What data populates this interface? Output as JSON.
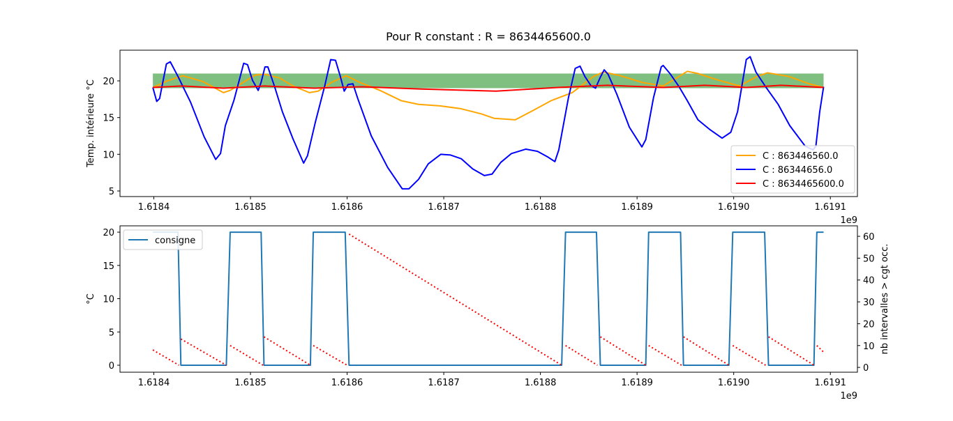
{
  "chart_data": [
    {
      "type": "line",
      "title": "Pour R constant : R = 8634465600.0",
      "ylabel": "Temp. intérieure °C",
      "x_offset_label": "1e9",
      "xlim": [
        1.618365,
        1.619128
      ],
      "xticks": [
        1.6184,
        1.6185,
        1.6186,
        1.6187,
        1.6188,
        1.6189,
        {
          "value": 1.619,
          "label": "1.6190"
        },
        1.6191
      ],
      "ylim": [
        4.24,
        24.18
      ],
      "yticks": [
        5,
        10,
        15,
        20
      ],
      "legend": "lower right",
      "bands": [
        {
          "color": "#7fbf7f",
          "x": [
            1.618399,
            1.619093
          ],
          "lower": [
            19,
            19
          ],
          "upper": [
            21,
            21
          ]
        }
      ],
      "series": [
        {
          "name": "C : 863446560.0",
          "color": "#ffa500",
          "x": [
            1.618399,
            1.618414,
            1.61843,
            1.618451,
            1.618472,
            1.618479,
            1.61849,
            1.618505,
            1.618515,
            1.61853,
            1.618544,
            1.618561,
            1.61857,
            1.618584,
            1.618599,
            1.618613,
            1.618634,
            1.618656,
            1.618674,
            1.618696,
            1.618718,
            1.618739,
            1.618752,
            1.618774,
            1.61879,
            1.618811,
            1.618833,
            1.618855,
            1.618865,
            1.618883,
            1.618905,
            1.618927,
            1.618941,
            1.618952,
            1.618963,
            1.618984,
            1.619006,
            1.619024,
            1.619035,
            1.619057,
            1.619078,
            1.619093
          ],
          "values": [
            19.1,
            20.0,
            20.7,
            19.9,
            18.4,
            18.7,
            19.6,
            20.8,
            20.9,
            20.4,
            19.3,
            18.4,
            18.6,
            19.8,
            20.7,
            19.8,
            18.7,
            17.3,
            16.8,
            16.6,
            16.2,
            15.5,
            14.9,
            14.7,
            15.8,
            17.3,
            18.4,
            20.6,
            21.2,
            20.7,
            19.8,
            19.3,
            20.4,
            21.3,
            21.0,
            20.1,
            19.3,
            20.6,
            21.1,
            20.6,
            19.6,
            19.1
          ]
        },
        {
          "name": "C : 86344656.0",
          "color": "#0000ff",
          "x": [
            1.618399,
            1.618403,
            1.618406,
            1.618413,
            1.618417,
            1.618425,
            1.618438,
            1.618452,
            1.618464,
            1.618469,
            1.618474,
            1.618483,
            1.618493,
            1.618497,
            1.618502,
            1.618508,
            1.618511,
            1.618515,
            1.618518,
            1.618525,
            1.618533,
            1.618544,
            1.618555,
            1.618559,
            1.618567,
            1.618577,
            1.618583,
            1.618588,
            1.618593,
            1.618597,
            1.618601,
            1.618606,
            1.618611,
            1.618625,
            1.618642,
            1.618657,
            1.618664,
            1.618674,
            1.618684,
            1.618697,
            1.618707,
            1.618718,
            1.61873,
            1.618742,
            1.61875,
            1.618759,
            1.61877,
            1.618785,
            1.618797,
            1.618808,
            1.618815,
            1.618819,
            1.618829,
            1.618836,
            1.618841,
            1.618846,
            1.618852,
            1.618857,
            1.618862,
            1.618866,
            1.61887,
            1.618879,
            1.618892,
            1.618905,
            1.618909,
            1.618917,
            1.618925,
            1.618927,
            1.618934,
            1.618943,
            1.618952,
            1.618963,
            1.618975,
            1.618988,
            1.618997,
            1.619004,
            1.619013,
            1.619017,
            1.619023,
            1.619033,
            1.619046,
            1.619058,
            1.619074,
            1.619082,
            1.619085,
            1.619089,
            1.619093
          ],
          "values": [
            19.1,
            17.2,
            17.6,
            22.3,
            22.6,
            20.6,
            17.1,
            12.4,
            9.3,
            10.1,
            13.9,
            17.4,
            22.4,
            22.2,
            20.1,
            18.7,
            19.8,
            21.9,
            21.9,
            19.2,
            15.8,
            12.1,
            8.8,
            9.8,
            14.3,
            19.4,
            22.9,
            22.8,
            20.6,
            18.6,
            19.5,
            19.6,
            17.6,
            12.5,
            8.2,
            5.3,
            5.3,
            6.6,
            8.7,
            10.0,
            9.9,
            9.4,
            8.0,
            7.1,
            7.3,
            8.9,
            10.1,
            10.7,
            10.4,
            9.6,
            9.0,
            10.6,
            17.7,
            21.7,
            22.0,
            20.6,
            19.4,
            19.0,
            20.5,
            21.5,
            20.9,
            18.2,
            13.7,
            11.0,
            12.0,
            17.7,
            21.9,
            22.1,
            21.0,
            19.3,
            17.3,
            14.7,
            13.4,
            12.2,
            13.0,
            15.8,
            22.9,
            23.3,
            21.2,
            19.2,
            16.8,
            13.9,
            11.1,
            10.6,
            11.1,
            15.8,
            19.2
          ]
        },
        {
          "name": "C : 8634465600.0",
          "color": "#ff0000",
          "x": [
            1.618399,
            1.618429,
            1.618472,
            1.618515,
            1.618566,
            1.618616,
            1.618674,
            1.618754,
            1.618818,
            1.618869,
            1.618927,
            1.61897,
            1.619013,
            1.619049,
            1.619093
          ],
          "values": [
            19.1,
            19.3,
            19.0,
            19.3,
            19.0,
            19.2,
            18.9,
            18.6,
            19.1,
            19.4,
            19.1,
            19.4,
            19.1,
            19.4,
            19.1
          ]
        }
      ]
    },
    {
      "type": "line",
      "ylabel": "°C",
      "y2label": "nb intervalles > cgt occ.",
      "x_offset_label": "1e9",
      "xlim": [
        1.618365,
        1.619128
      ],
      "xticks": [
        1.6184,
        1.6185,
        1.6186,
        1.6187,
        1.6188,
        1.6189,
        {
          "value": 1.619,
          "label": "1.6190"
        },
        1.6191
      ],
      "ylim": [
        -1.05,
        20.95
      ],
      "yticks": [
        0,
        5,
        10,
        15,
        20
      ],
      "y2lim": [
        -2.2,
        64.8
      ],
      "y2ticks": [
        0,
        10,
        20,
        30,
        40,
        50,
        60
      ],
      "legend": "upper left",
      "series": [
        {
          "name": "consigne",
          "color": "#1f77b4",
          "x": [
            1.618399,
            1.618425,
            1.618428,
            1.618475,
            1.618479,
            1.618511,
            1.618514,
            1.618562,
            1.618565,
            1.618598,
            1.618602,
            1.618822,
            1.618826,
            1.618858,
            1.618862,
            1.618909,
            1.618912,
            1.618945,
            1.618948,
            1.618995,
            1.618999,
            1.619032,
            1.619036,
            1.619083,
            1.619086,
            1.619093
          ],
          "values": [
            20,
            20,
            0,
            0,
            20,
            20,
            0,
            0,
            20,
            20,
            0,
            0,
            20,
            20,
            0,
            0,
            20,
            20,
            0,
            0,
            20,
            20,
            0,
            0,
            20,
            20
          ]
        },
        {
          "color": "#ff0000",
          "axis": "y2",
          "linestyle": "dotted",
          "x": [
            1.618399,
            1.618426,
            null,
            1.618428,
            1.618475,
            null,
            1.618479,
            1.618513,
            null,
            1.618514,
            1.618562,
            null,
            1.618565,
            1.6186,
            null,
            1.618602,
            1.618822,
            null,
            1.618826,
            1.618859,
            null,
            1.618862,
            1.618909,
            null,
            1.618912,
            1.618946,
            null,
            1.618948,
            1.618995,
            null,
            1.618999,
            1.619033,
            null,
            1.619036,
            1.619083,
            null,
            1.619086,
            1.619093
          ],
          "values": [
            8,
            1,
            null,
            13,
            1,
            null,
            10,
            1,
            null,
            14,
            1,
            null,
            10,
            1,
            null,
            61,
            1,
            null,
            10,
            1,
            null,
            14,
            1,
            null,
            10,
            1,
            null,
            14,
            1,
            null,
            10,
            1,
            null,
            14,
            1,
            null,
            10,
            7
          ]
        }
      ]
    }
  ]
}
